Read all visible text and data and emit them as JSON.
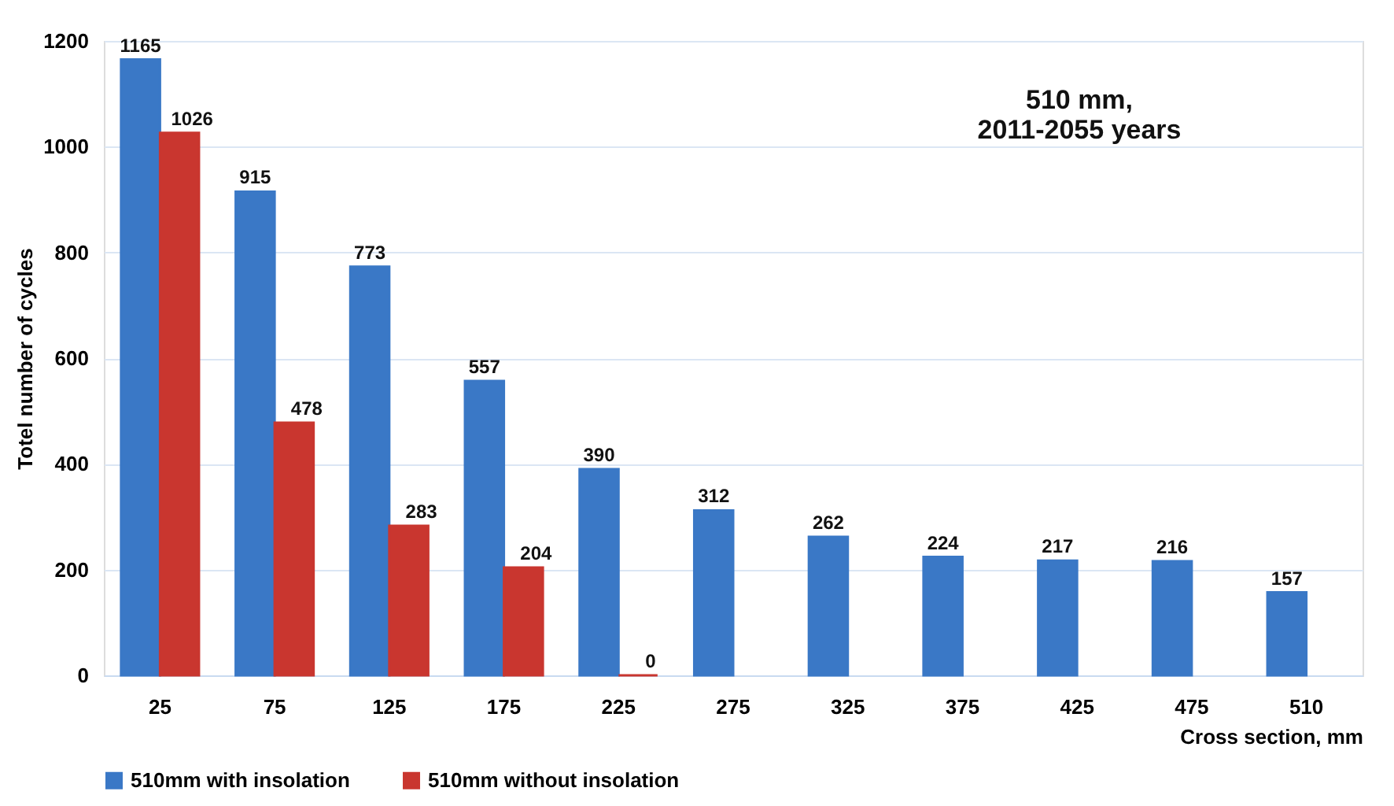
{
  "chart_data": {
    "type": "bar",
    "categories": [
      "25",
      "75",
      "125",
      "175",
      "225",
      "275",
      "325",
      "375",
      "425",
      "475",
      "510"
    ],
    "series": [
      {
        "name": "510mm with insolation",
        "color": "#3a78c6",
        "values": [
          1165,
          915,
          773,
          557,
          390,
          312,
          262,
          224,
          217,
          216,
          157
        ]
      },
      {
        "name": "510mm without insolation",
        "color": "#c9362f",
        "values": [
          1026,
          478,
          283,
          204,
          0,
          null,
          null,
          null,
          null,
          null,
          null
        ]
      }
    ],
    "xlabel": "Cross section, mm",
    "ylabel": "Totel number of cycles",
    "annotations": [
      "510 mm,\n2011-2055 years"
    ],
    "ylim": [
      0,
      1200
    ],
    "yticks": [
      0,
      200,
      400,
      600,
      800,
      1000,
      1200
    ],
    "grid": "y",
    "legend": "bottom",
    "data_labels": true
  }
}
